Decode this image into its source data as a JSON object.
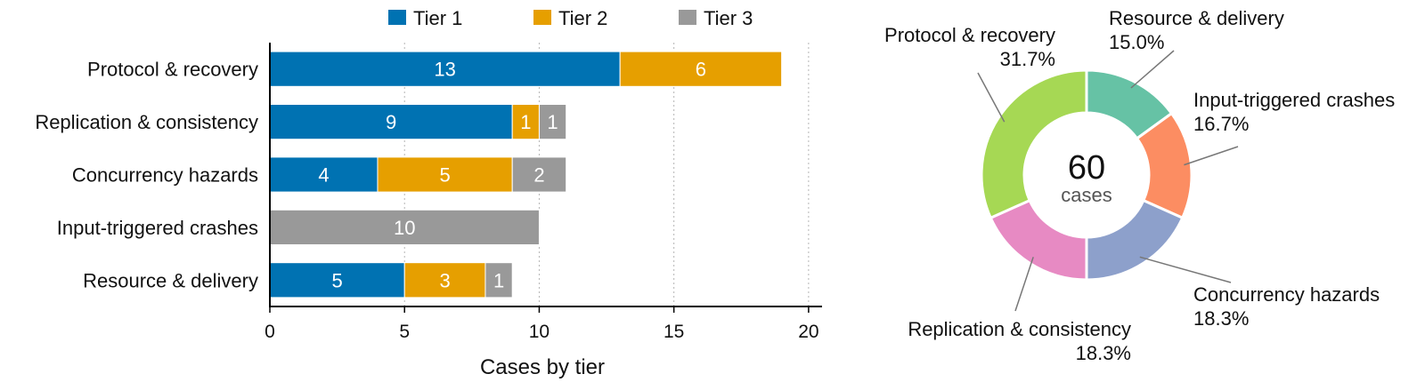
{
  "chart_data": [
    {
      "type": "bar",
      "orientation": "horizontal",
      "stacked": true,
      "categories": [
        "Protocol & recovery",
        "Replication & consistency",
        "Concurrency hazards",
        "Input-triggered crashes",
        "Resource & delivery"
      ],
      "series": [
        {
          "name": "Tier 1",
          "color": "#0072b2",
          "values": [
            13,
            9,
            4,
            0,
            5
          ]
        },
        {
          "name": "Tier 2",
          "color": "#e69f00",
          "values": [
            6,
            1,
            5,
            0,
            3
          ]
        },
        {
          "name": "Tier 3",
          "color": "#999999",
          "values": [
            0,
            1,
            2,
            10,
            1
          ]
        }
      ],
      "xlabel": "Cases by tier",
      "xlim": [
        0,
        20.5
      ],
      "xticks": [
        0,
        5,
        10,
        15,
        20
      ],
      "grid": "vertical dotted",
      "legend": "top"
    },
    {
      "type": "pie",
      "variant": "donut",
      "center_value": "60",
      "center_label": "cases",
      "slices": [
        {
          "label": "Resource & delivery",
          "value": 15.0,
          "pct": "15.0%",
          "color": "#66c2a5"
        },
        {
          "label": "Input-triggered crashes",
          "value": 16.7,
          "pct": "16.7%",
          "color": "#fc8d62"
        },
        {
          "label": "Concurrency hazards",
          "value": 18.3,
          "pct": "18.3%",
          "color": "#8da0cb"
        },
        {
          "label": "Replication & consistency",
          "value": 18.3,
          "pct": "18.3%",
          "color": "#e78ac3"
        },
        {
          "label": "Protocol & recovery",
          "value": 31.7,
          "pct": "31.7%",
          "color": "#a6d854"
        }
      ]
    }
  ]
}
